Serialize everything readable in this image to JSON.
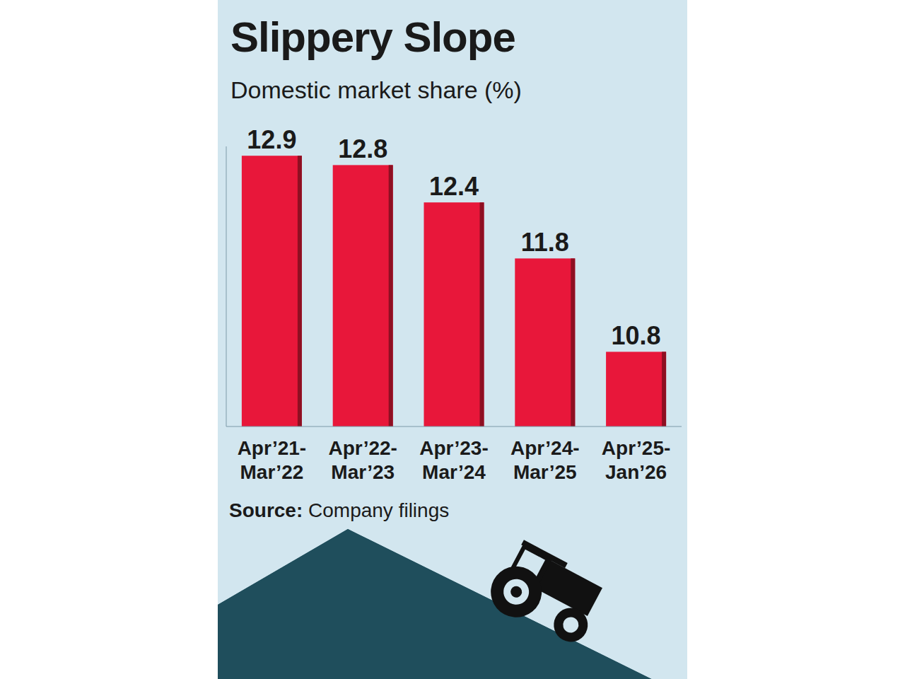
{
  "chart_data": {
    "type": "bar",
    "title": "Slippery Slope",
    "subtitle": "Domestic market share (%)",
    "categories": [
      "Apr’21-Mar’22",
      "Apr’22-Mar’23",
      "Apr’23-Mar’24",
      "Apr’24-Mar’25",
      "Apr’25-Jan’26"
    ],
    "values": [
      12.9,
      12.8,
      12.4,
      11.8,
      10.8
    ],
    "color": "#e8173a",
    "ylim": [
      10,
      13
    ],
    "data_labels": true,
    "tick_labels": "x",
    "grid": false,
    "source": "Source: Company filings"
  }
}
